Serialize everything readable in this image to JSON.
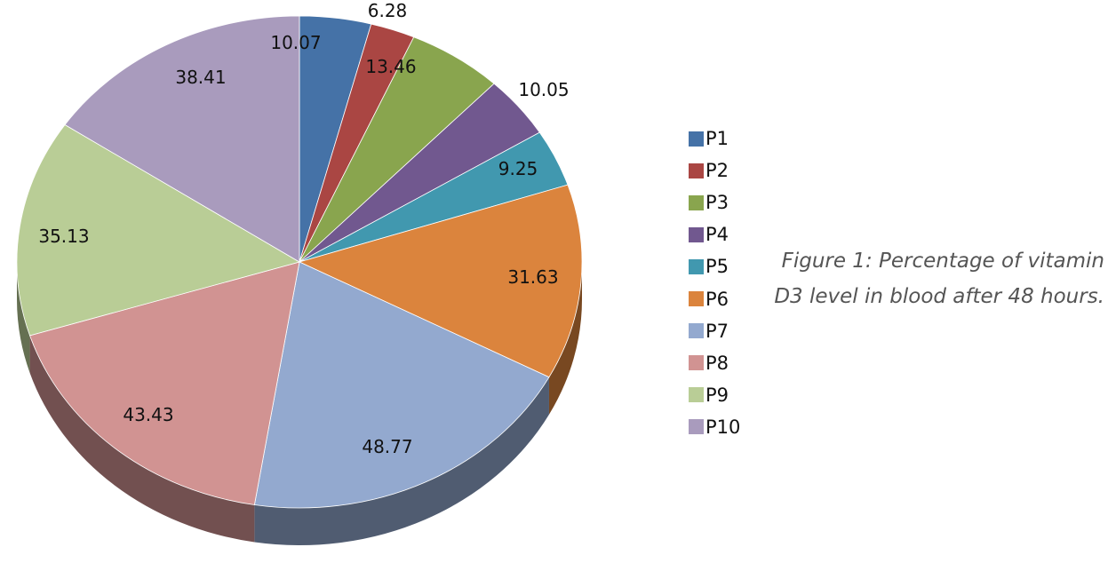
{
  "chart_data": {
    "type": "pie",
    "style": "3d",
    "categories": [
      "P1",
      "P2",
      "P3",
      "P4",
      "P5",
      "P6",
      "P7",
      "P8",
      "P9",
      "P10"
    ],
    "values": [
      10.07,
      6.28,
      13.46,
      10.05,
      9.25,
      31.63,
      48.77,
      43.43,
      35.13,
      38.41
    ],
    "value_labels": [
      "10.07",
      "6.28",
      "13.46",
      "10.05",
      "9.25",
      "31.63",
      "48.77",
      "43.43",
      "35.13",
      "38.41"
    ],
    "colors": [
      "#4572a7",
      "#aa4643",
      "#89a54e",
      "#71588f",
      "#4198af",
      "#db843d",
      "#93a9cf",
      "#d19392",
      "#b9cd96",
      "#a99bbd"
    ],
    "legend_position": "right",
    "title": ""
  },
  "caption": {
    "line1": "Figure 1: Percentage of vitamin",
    "line2": "D3 level in blood after 48 hours."
  }
}
